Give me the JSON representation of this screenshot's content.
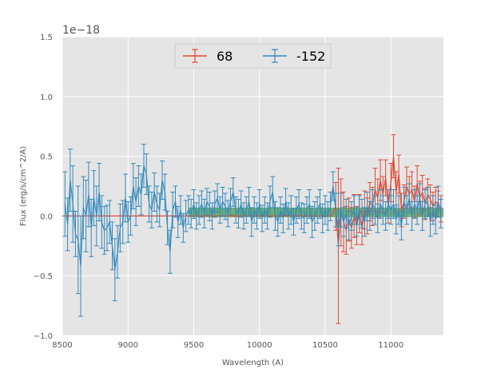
{
  "chart_data": {
    "type": "line",
    "title": "",
    "xlabel": "Wavelength (A)",
    "ylabel": "Flux (erg/s/cm^2/A)",
    "offset_label": "1e−18",
    "xlim": [
      8500,
      11400
    ],
    "ylim": [
      -1.0,
      1.5
    ],
    "y_scale_exponent": -18,
    "x_ticks": [
      8500,
      9000,
      9500,
      10000,
      10500,
      11000
    ],
    "x_tick_labels": [
      "8500",
      "9000",
      "9500",
      "10000",
      "10500",
      "11000"
    ],
    "y_ticks": [
      -1.0,
      -0.5,
      0.0,
      0.5,
      1.0,
      1.5
    ],
    "y_tick_labels": [
      "−1.0",
      "−0.5",
      "0.0",
      "0.5",
      "1.0",
      "1.5"
    ],
    "grid": true,
    "legend_position": "top-center",
    "colors": {
      "plot_background": "#e5e5e5",
      "grid": "#ffffff",
      "series_68": "#e24a33",
      "series_m152": "#348abd",
      "band": "#228b22"
    },
    "band": {
      "x_start": 9460,
      "x_end": 11400,
      "y_low": -0.01,
      "y_high": 0.07,
      "color": "#228b22",
      "opacity": 0.6
    },
    "series": [
      {
        "name": "68",
        "color": "#e24a33",
        "points": [
          [
            8500,
            0.0,
            0.0
          ],
          [
            9400,
            0.0,
            0.0
          ],
          [
            10550,
            0.0,
            0.0
          ],
          [
            10580,
            0.08,
            0.2
          ],
          [
            10600,
            -0.25,
            0.65
          ],
          [
            10620,
            0.03,
            0.28
          ],
          [
            10640,
            -0.05,
            0.25
          ],
          [
            10660,
            -0.12,
            0.2
          ],
          [
            10680,
            -0.03,
            0.18
          ],
          [
            10700,
            -0.1,
            0.17
          ],
          [
            10720,
            0.0,
            0.18
          ],
          [
            10740,
            -0.08,
            0.16
          ],
          [
            10760,
            0.02,
            0.16
          ],
          [
            10780,
            -0.1,
            0.14
          ],
          [
            10800,
            0.05,
            0.16
          ],
          [
            10820,
            0.0,
            0.15
          ],
          [
            10840,
            0.12,
            0.16
          ],
          [
            10860,
            0.08,
            0.16
          ],
          [
            10880,
            0.22,
            0.18
          ],
          [
            10900,
            0.15,
            0.16
          ],
          [
            10920,
            0.3,
            0.17
          ],
          [
            10940,
            0.18,
            0.15
          ],
          [
            10960,
            0.32,
            0.15
          ],
          [
            10980,
            0.08,
            0.14
          ],
          [
            11000,
            0.28,
            0.16
          ],
          [
            11020,
            0.5,
            0.18
          ],
          [
            11040,
            0.2,
            0.17
          ],
          [
            11060,
            0.35,
            0.16
          ],
          [
            11080,
            0.05,
            0.14
          ],
          [
            11100,
            0.12,
            0.14
          ],
          [
            11120,
            0.25,
            0.16
          ],
          [
            11140,
            0.18,
            0.15
          ],
          [
            11160,
            0.22,
            0.15
          ],
          [
            11180,
            0.12,
            0.13
          ],
          [
            11200,
            0.27,
            0.15
          ],
          [
            11220,
            0.15,
            0.14
          ],
          [
            11240,
            0.2,
            0.14
          ],
          [
            11260,
            0.1,
            0.13
          ],
          [
            11280,
            0.18,
            0.13
          ],
          [
            11300,
            0.14,
            0.12
          ],
          [
            11320,
            0.08,
            0.12
          ],
          [
            11340,
            0.12,
            0.12
          ],
          [
            11360,
            0.1,
            0.11
          ],
          [
            11380,
            0.06,
            0.11
          ]
        ]
      },
      {
        "name": "-152",
        "color": "#348abd",
        "points": [
          [
            8520,
            0.1,
            0.27
          ],
          [
            8540,
            -0.07,
            0.22
          ],
          [
            8560,
            0.3,
            0.26
          ],
          [
            8580,
            0.1,
            0.32
          ],
          [
            8600,
            -0.15,
            0.19
          ],
          [
            8620,
            -0.2,
            0.45
          ],
          [
            8640,
            -0.42,
            0.42
          ],
          [
            8660,
            0.07,
            0.26
          ],
          [
            8680,
            0.0,
            0.3
          ],
          [
            8700,
            0.18,
            0.27
          ],
          [
            8720,
            -0.1,
            0.24
          ],
          [
            8740,
            0.15,
            0.23
          ],
          [
            8760,
            0.0,
            0.25
          ],
          [
            8780,
            0.2,
            0.24
          ],
          [
            8800,
            -0.05,
            0.22
          ],
          [
            8820,
            -0.12,
            0.2
          ],
          [
            8840,
            -0.1,
            0.19
          ],
          [
            8860,
            -0.05,
            0.18
          ],
          [
            8880,
            -0.25,
            0.2
          ],
          [
            8900,
            -0.45,
            0.26
          ],
          [
            8920,
            -0.3,
            0.22
          ],
          [
            8940,
            -0.1,
            0.2
          ],
          [
            8960,
            -0.05,
            0.18
          ],
          [
            8980,
            0.15,
            0.2
          ],
          [
            9000,
            -0.05,
            0.17
          ],
          [
            9020,
            0.0,
            0.16
          ],
          [
            9040,
            0.25,
            0.19
          ],
          [
            9060,
            0.12,
            0.2
          ],
          [
            9080,
            0.25,
            0.17
          ],
          [
            9100,
            0.18,
            0.17
          ],
          [
            9120,
            0.42,
            0.18
          ],
          [
            9140,
            0.35,
            0.17
          ],
          [
            9160,
            0.1,
            0.15
          ],
          [
            9180,
            0.05,
            0.15
          ],
          [
            9200,
            0.2,
            0.16
          ],
          [
            9220,
            0.1,
            0.15
          ],
          [
            9240,
            0.05,
            0.14
          ],
          [
            9260,
            0.3,
            0.16
          ],
          [
            9280,
            0.2,
            0.15
          ],
          [
            9300,
            -0.1,
            0.14
          ],
          [
            9320,
            -0.3,
            0.18
          ],
          [
            9340,
            0.05,
            0.15
          ],
          [
            9360,
            0.12,
            0.13
          ],
          [
            9380,
            -0.05,
            0.13
          ],
          [
            9400,
            0.05,
            0.12
          ],
          [
            9420,
            -0.1,
            0.12
          ],
          [
            9440,
            0.0,
            0.13
          ],
          [
            9460,
            0.05,
            0.12
          ],
          [
            9480,
            0.02,
            0.12
          ],
          [
            9500,
            0.1,
            0.12
          ],
          [
            9520,
            0.0,
            0.11
          ],
          [
            9540,
            0.05,
            0.12
          ],
          [
            9560,
            0.1,
            0.11
          ],
          [
            9580,
            0.02,
            0.12
          ],
          [
            9600,
            0.12,
            0.11
          ],
          [
            9620,
            0.08,
            0.12
          ],
          [
            9640,
            0.0,
            0.11
          ],
          [
            9660,
            0.1,
            0.11
          ],
          [
            9680,
            0.15,
            0.12
          ],
          [
            9700,
            0.05,
            0.11
          ],
          [
            9720,
            0.12,
            0.12
          ],
          [
            9740,
            0.08,
            0.11
          ],
          [
            9760,
            0.02,
            0.11
          ],
          [
            9780,
            0.12,
            0.11
          ],
          [
            9800,
            0.2,
            0.12
          ],
          [
            9820,
            0.05,
            0.11
          ],
          [
            9840,
            0.02,
            0.12
          ],
          [
            9860,
            0.1,
            0.11
          ],
          [
            9880,
            0.0,
            0.11
          ],
          [
            9900,
            0.05,
            0.11
          ],
          [
            9920,
            0.12,
            0.12
          ],
          [
            9940,
            -0.05,
            0.12
          ],
          [
            9960,
            0.05,
            0.11
          ],
          [
            9980,
            0.0,
            0.11
          ],
          [
            10000,
            0.1,
            0.12
          ],
          [
            10020,
            -0.02,
            0.11
          ],
          [
            10040,
            0.05,
            0.11
          ],
          [
            10060,
            0.0,
            0.11
          ],
          [
            10080,
            0.12,
            0.13
          ],
          [
            10100,
            0.2,
            0.13
          ],
          [
            10120,
            0.0,
            0.12
          ],
          [
            10140,
            -0.05,
            0.12
          ],
          [
            10160,
            0.05,
            0.11
          ],
          [
            10180,
            -0.02,
            0.12
          ],
          [
            10200,
            0.12,
            0.11
          ],
          [
            10220,
            0.0,
            0.11
          ],
          [
            10240,
            0.05,
            0.12
          ],
          [
            10260,
            -0.05,
            0.11
          ],
          [
            10280,
            0.05,
            0.11
          ],
          [
            10300,
            0.1,
            0.12
          ],
          [
            10320,
            0.0,
            0.11
          ],
          [
            10340,
            -0.02,
            0.12
          ],
          [
            10360,
            0.05,
            0.11
          ],
          [
            10380,
            0.1,
            0.12
          ],
          [
            10400,
            -0.05,
            0.13
          ],
          [
            10420,
            0.0,
            0.12
          ],
          [
            10440,
            0.05,
            0.11
          ],
          [
            10460,
            0.1,
            0.12
          ],
          [
            10480,
            -0.02,
            0.12
          ],
          [
            10500,
            0.05,
            0.12
          ],
          [
            10520,
            0.0,
            0.12
          ],
          [
            10540,
            0.08,
            0.12
          ],
          [
            10560,
            0.25,
            0.12
          ],
          [
            10580,
            0.05,
            0.14
          ],
          [
            10600,
            -0.1,
            0.15
          ],
          [
            10620,
            0.05,
            0.14
          ],
          [
            10640,
            -0.05,
            0.12
          ],
          [
            10660,
            0.02,
            0.12
          ],
          [
            10680,
            -0.08,
            0.12
          ],
          [
            10700,
            0.0,
            0.12
          ],
          [
            10720,
            0.05,
            0.12
          ],
          [
            10740,
            -0.05,
            0.12
          ],
          [
            10760,
            0.05,
            0.12
          ],
          [
            10780,
            0.02,
            0.12
          ],
          [
            10800,
            -0.05,
            0.12
          ],
          [
            10820,
            0.08,
            0.12
          ],
          [
            10840,
            0.0,
            0.12
          ],
          [
            10860,
            0.1,
            0.12
          ],
          [
            10880,
            0.05,
            0.12
          ],
          [
            10900,
            -0.02,
            0.12
          ],
          [
            10920,
            0.1,
            0.12
          ],
          [
            10940,
            0.05,
            0.12
          ],
          [
            10960,
            0.0,
            0.12
          ],
          [
            10980,
            0.1,
            0.12
          ],
          [
            11000,
            0.05,
            0.12
          ],
          [
            11020,
            0.1,
            0.12
          ],
          [
            11040,
            -0.03,
            0.12
          ],
          [
            11060,
            0.05,
            0.12
          ],
          [
            11080,
            -0.08,
            0.12
          ],
          [
            11100,
            0.12,
            0.12
          ],
          [
            11120,
            0.05,
            0.12
          ],
          [
            11140,
            0.15,
            0.12
          ],
          [
            11160,
            0.0,
            0.12
          ],
          [
            11180,
            0.1,
            0.12
          ],
          [
            11200,
            0.05,
            0.12
          ],
          [
            11220,
            0.15,
            0.12
          ],
          [
            11240,
            0.0,
            0.12
          ],
          [
            11260,
            0.1,
            0.12
          ],
          [
            11280,
            0.12,
            0.12
          ],
          [
            11300,
            -0.05,
            0.12
          ],
          [
            11320,
            0.05,
            0.12
          ],
          [
            11340,
            -0.03,
            0.12
          ],
          [
            11360,
            0.12,
            0.13
          ],
          [
            11380,
            0.02,
            0.12
          ]
        ]
      }
    ]
  }
}
